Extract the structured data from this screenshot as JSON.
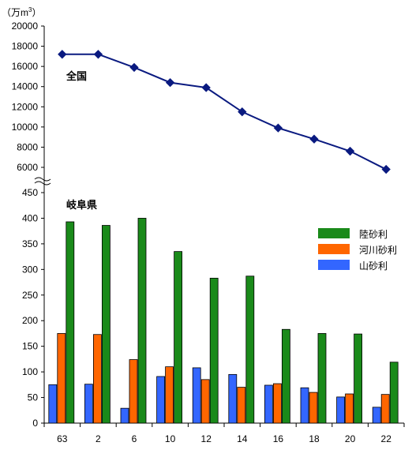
{
  "chart_data": [
    {
      "type": "line",
      "unit_label": "（万m",
      "unit_sup": "3",
      "unit_close": "）",
      "series_label": "全国",
      "yticks": [
        6000,
        8000,
        10000,
        12000,
        14000,
        16000,
        18000,
        20000
      ],
      "ylim": [
        6000,
        20000
      ],
      "x": [
        "63",
        "2",
        "6",
        "10",
        "12",
        "14",
        "16",
        "18",
        "20",
        "22"
      ],
      "values": [
        17200,
        17200,
        15900,
        14400,
        13900,
        11500,
        9900,
        8800,
        7600,
        5800
      ],
      "color": "#0a1a80"
    },
    {
      "type": "bar",
      "series_label": "岐阜県",
      "yticks": [
        0,
        50,
        100,
        150,
        200,
        250,
        300,
        350,
        400,
        450
      ],
      "ylim": [
        0,
        450
      ],
      "categories": [
        "63",
        "2",
        "6",
        "10",
        "12",
        "14",
        "16",
        "18",
        "20",
        "22"
      ],
      "series": [
        {
          "name": "山砂利",
          "color": "#3366ff",
          "values": [
            75,
            76,
            29,
            91,
            108,
            95,
            74,
            69,
            51,
            31
          ]
        },
        {
          "name": "河川砂利",
          "color": "#ff6600",
          "values": [
            175,
            173,
            124,
            110,
            85,
            70,
            77,
            60,
            57,
            56
          ]
        },
        {
          "name": "陸砂利",
          "color": "#1a8a1a",
          "values": [
            393,
            386,
            400,
            335,
            283,
            287,
            183,
            175,
            174,
            119
          ]
        }
      ],
      "legend_order": [
        "陸砂利",
        "河川砂利",
        "山砂利"
      ]
    }
  ]
}
